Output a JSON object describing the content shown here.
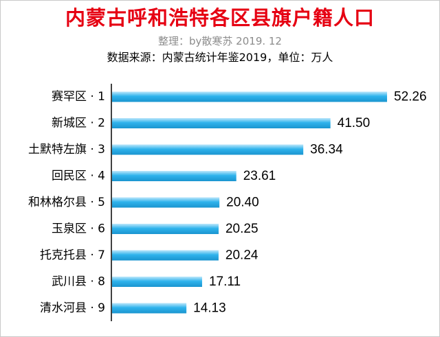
{
  "title": "内蒙古呼和浩特各区县旗户籍人口",
  "subtitle": "整理：by散寒苏 2019. 12",
  "source_note": "数据来源：内蒙古统计年鉴2019，单位：万人",
  "colors": {
    "title": "#e60012",
    "bar_light": "#bfe8fb",
    "bar_mid": "#2fb3ec",
    "bar_dark": "#1a94cf",
    "axis": "#000000",
    "frame": "#c8c8c8"
  },
  "chart_data": {
    "type": "bar",
    "orientation": "horizontal",
    "categories": [
      "赛罕区 · 1",
      "新城区 · 2",
      "土默特左旗 · 3",
      "回民区 · 4",
      "和林格尔县 · 5",
      "玉泉区 · 6",
      "托克托县 · 7",
      "武川县 · 8",
      "清水河县 · 9"
    ],
    "values": [
      52.26,
      41.5,
      36.34,
      23.61,
      20.4,
      20.25,
      20.24,
      17.11,
      14.13
    ],
    "value_labels": [
      "52.26",
      "41.50",
      "36.34",
      "23.61",
      "20.40",
      "20.25",
      "20.24",
      "17.11",
      "14.13"
    ],
    "xlim": [
      0,
      52.26
    ],
    "title": "内蒙古呼和浩特各区县旗户籍人口",
    "xlabel": "",
    "ylabel": "",
    "grid": false,
    "legend": "none"
  }
}
